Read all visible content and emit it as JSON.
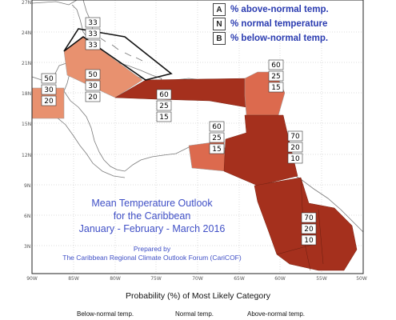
{
  "legend": {
    "above": {
      "key": "A",
      "text": "% above-normal temp."
    },
    "normal": {
      "key": "N",
      "text": "% normal temperature"
    },
    "below": {
      "key": "B",
      "text": "% below-normal temp."
    }
  },
  "title": {
    "line1": "Mean Temperature Outlook",
    "line2": "for the Caribbean",
    "line3": "January - February - March 2016",
    "prepared_by": "Prepared by",
    "organization": "The Caribbean Regional Climate Outlook Forum (CariCOF)"
  },
  "axes": {
    "lat_labels": [
      "27N",
      "24N",
      "21N",
      "18N",
      "15N",
      "12N",
      "9N",
      "6N",
      "3N"
    ],
    "lon_labels": [
      "90W",
      "85W",
      "80W",
      "75W",
      "70W",
      "65W",
      "60W",
      "55W",
      "50W"
    ]
  },
  "probability_title": "Probability (%) of Most Likely Category",
  "categories": {
    "below": "Below-normal temp.",
    "normal": "Normal temp.",
    "above": "Above-normal temp."
  },
  "colors": {
    "water": "#ffffff",
    "land_stroke": "#7a7a7a",
    "frame": "#222222",
    "above_strong": "#a5301d",
    "above_medium": "#c44a33",
    "above_light": "#dc6a4e",
    "above_pale": "#e8916f",
    "title_blue": "#3f4fc6",
    "legend_blue": "#2a3bb0"
  },
  "regions": [
    {
      "id": "bahamas",
      "above": "33",
      "normal": "33",
      "below": "33",
      "fill": "none"
    },
    {
      "id": "cuba",
      "above": "50",
      "normal": "30",
      "below": "20",
      "fill": "above_pale"
    },
    {
      "id": "belize",
      "above": "50",
      "normal": "30",
      "below": "20",
      "fill": "above_pale"
    },
    {
      "id": "greater-antilles",
      "above": "60",
      "normal": "25",
      "below": "15",
      "fill": "above_strong"
    },
    {
      "id": "leeward-islands",
      "above": "60",
      "normal": "25",
      "below": "15",
      "fill": "above_light"
    },
    {
      "id": "abc-islands",
      "above": "60",
      "normal": "25",
      "below": "15",
      "fill": "above_light"
    },
    {
      "id": "windward-islands",
      "above": "70",
      "normal": "20",
      "below": "10",
      "fill": "above_strong"
    },
    {
      "id": "guianas",
      "above": "70",
      "normal": "20",
      "below": "10",
      "fill": "above_strong"
    }
  ]
}
